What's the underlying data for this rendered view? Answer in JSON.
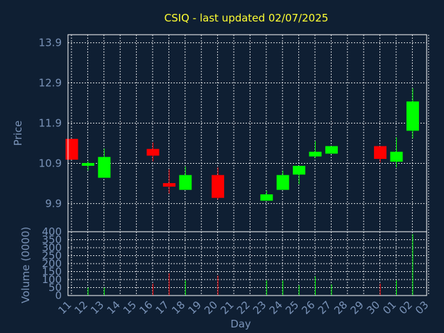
{
  "chart_data": {
    "type": "candlestick",
    "title": "CSIQ - last updated 02/07/2025",
    "ylabel": "Price",
    "volume_ylabel": "Volume (0000)",
    "xlabel": "Day",
    "price_ticks": [
      "9.9",
      "10.9",
      "11.9",
      "12.9",
      "13.9"
    ],
    "price_range": [
      9.2,
      14.1
    ],
    "volume_ticks": [
      "0",
      "50",
      "100",
      "150",
      "200",
      "250",
      "300",
      "350",
      "400"
    ],
    "volume_range": [
      0,
      400
    ],
    "day_labels": [
      "11",
      "12",
      "13",
      "14",
      "15",
      "16",
      "17",
      "18",
      "19",
      "20",
      "21",
      "22",
      "23",
      "24",
      "25",
      "26",
      "27",
      "28",
      "29",
      "30",
      "01",
      "02",
      "03"
    ],
    "colors": {
      "up": "#00ff00",
      "down": "#ff0000",
      "background": "#0f1f33",
      "title": "#ffff33",
      "labels": "#7a93b8",
      "grid": "#ffffff"
    },
    "candles": [
      {
        "day": "11",
        "open": 11.5,
        "high": 11.5,
        "low": 11.0,
        "close": 11.0,
        "volume": 0
      },
      {
        "day": "12",
        "open": 10.85,
        "high": 10.95,
        "low": 10.72,
        "close": 10.9,
        "volume": 50
      },
      {
        "day": "13",
        "open": 10.55,
        "high": 11.27,
        "low": 10.55,
        "close": 11.05,
        "volume": 50
      },
      {
        "day": "16",
        "open": 11.25,
        "high": 11.42,
        "low": 10.95,
        "close": 11.1,
        "volume": 75
      },
      {
        "day": "17",
        "open": 10.4,
        "high": 10.75,
        "low": 10.15,
        "close": 10.33,
        "volume": 140
      },
      {
        "day": "18",
        "open": 10.25,
        "high": 10.82,
        "low": 10.25,
        "close": 10.6,
        "volume": 95
      },
      {
        "day": "20",
        "open": 10.6,
        "high": 10.8,
        "low": 10.0,
        "close": 10.05,
        "volume": 125
      },
      {
        "day": "23",
        "open": 9.98,
        "high": 10.22,
        "low": 9.98,
        "close": 10.12,
        "volume": 95
      },
      {
        "day": "24",
        "open": 10.25,
        "high": 10.72,
        "low": 10.25,
        "close": 10.6,
        "volume": 95
      },
      {
        "day": "25",
        "open": 10.63,
        "high": 10.83,
        "low": 10.38,
        "close": 10.83,
        "volume": 65
      },
      {
        "day": "26",
        "open": 11.08,
        "high": 11.45,
        "low": 11.03,
        "close": 11.18,
        "volume": 120
      },
      {
        "day": "27",
        "open": 11.15,
        "high": 11.32,
        "low": 11.15,
        "close": 11.32,
        "volume": 70
      },
      {
        "day": "30",
        "open": 11.32,
        "high": 11.32,
        "low": 10.92,
        "close": 11.02,
        "volume": 75
      },
      {
        "day": "01",
        "open": 10.95,
        "high": 11.55,
        "low": 10.8,
        "close": 11.18,
        "volume": 95
      },
      {
        "day": "02",
        "open": 11.72,
        "high": 12.77,
        "low": 11.52,
        "close": 12.43,
        "volume": 385
      }
    ]
  }
}
